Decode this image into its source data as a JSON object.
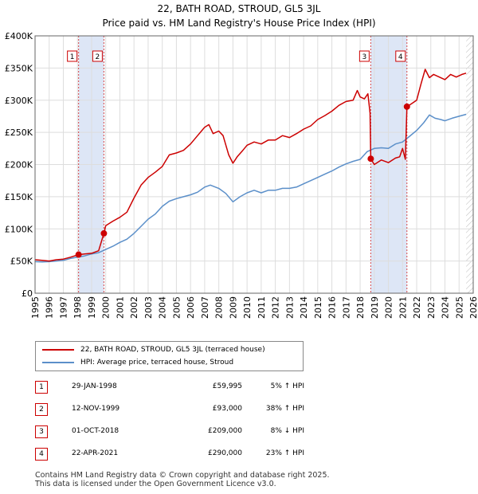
{
  "title": "22, BATH ROAD, STROUD, GL5 3JL",
  "subtitle": "Price paid vs. HM Land Registry's House Price Index (HPI)",
  "chart_data": {
    "type": "line",
    "xlim": [
      1995,
      2026
    ],
    "ylim": [
      0,
      400000
    ],
    "x_ticks": [
      1995,
      1996,
      1997,
      1998,
      1999,
      2000,
      2001,
      2002,
      2003,
      2004,
      2005,
      2006,
      2007,
      2008,
      2009,
      2010,
      2011,
      2012,
      2013,
      2014,
      2015,
      2016,
      2017,
      2018,
      2019,
      2020,
      2021,
      2022,
      2023,
      2024,
      2025,
      2026
    ],
    "y_ticks": [
      {
        "value": 0,
        "label": "£0"
      },
      {
        "value": 50000,
        "label": "£50K"
      },
      {
        "value": 100000,
        "label": "£100K"
      },
      {
        "value": 150000,
        "label": "£150K"
      },
      {
        "value": 200000,
        "label": "£200K"
      },
      {
        "value": 250000,
        "label": "£250K"
      },
      {
        "value": 300000,
        "label": "£300K"
      },
      {
        "value": 350000,
        "label": "£350K"
      },
      {
        "value": 400000,
        "label": "£400K"
      }
    ],
    "grid": true,
    "colors": {
      "property": "#cc0000",
      "hpi": "#5b8fc9",
      "shade": "#dde6f6",
      "marker": "#cc0000"
    },
    "shaded_ranges": [
      [
        1998.08,
        1999.87
      ],
      [
        2018.75,
        2021.31
      ]
    ],
    "future_hatch_from": 2025.5,
    "series": [
      {
        "name": "22, BATH ROAD, STROUD, GL5 3JL (terraced house)",
        "points": [
          [
            1995.0,
            52000
          ],
          [
            1995.5,
            51000
          ],
          [
            1996.0,
            50000
          ],
          [
            1996.5,
            52000
          ],
          [
            1997.0,
            53000
          ],
          [
            1997.5,
            56000
          ],
          [
            1998.08,
            59995
          ],
          [
            1998.5,
            61000
          ],
          [
            1999.0,
            62000
          ],
          [
            1999.5,
            66000
          ],
          [
            1999.87,
            93000
          ],
          [
            2000.0,
            105000
          ],
          [
            2000.5,
            112000
          ],
          [
            2001.0,
            118000
          ],
          [
            2001.5,
            126000
          ],
          [
            2002.0,
            148000
          ],
          [
            2002.5,
            168000
          ],
          [
            2003.0,
            180000
          ],
          [
            2003.5,
            188000
          ],
          [
            2004.0,
            197000
          ],
          [
            2004.5,
            215000
          ],
          [
            2005.0,
            218000
          ],
          [
            2005.5,
            222000
          ],
          [
            2006.0,
            232000
          ],
          [
            2006.5,
            245000
          ],
          [
            2007.0,
            258000
          ],
          [
            2007.3,
            262000
          ],
          [
            2007.6,
            248000
          ],
          [
            2008.0,
            252000
          ],
          [
            2008.3,
            245000
          ],
          [
            2008.7,
            215000
          ],
          [
            2009.0,
            202000
          ],
          [
            2009.3,
            212000
          ],
          [
            2009.7,
            222000
          ],
          [
            2010.0,
            230000
          ],
          [
            2010.5,
            235000
          ],
          [
            2011.0,
            232000
          ],
          [
            2011.5,
            238000
          ],
          [
            2012.0,
            238000
          ],
          [
            2012.5,
            245000
          ],
          [
            2013.0,
            242000
          ],
          [
            2013.5,
            248000
          ],
          [
            2014.0,
            255000
          ],
          [
            2014.5,
            260000
          ],
          [
            2015.0,
            270000
          ],
          [
            2015.5,
            276000
          ],
          [
            2016.0,
            283000
          ],
          [
            2016.5,
            292000
          ],
          [
            2017.0,
            298000
          ],
          [
            2017.5,
            300000
          ],
          [
            2017.8,
            315000
          ],
          [
            2018.0,
            305000
          ],
          [
            2018.3,
            302000
          ],
          [
            2018.55,
            310000
          ],
          [
            2018.7,
            280000
          ],
          [
            2018.75,
            209000
          ],
          [
            2019.0,
            200000
          ],
          [
            2019.5,
            207000
          ],
          [
            2020.0,
            203000
          ],
          [
            2020.5,
            210000
          ],
          [
            2020.8,
            212000
          ],
          [
            2021.0,
            225000
          ],
          [
            2021.2,
            208000
          ],
          [
            2021.31,
            290000
          ],
          [
            2021.6,
            294000
          ],
          [
            2022.0,
            300000
          ],
          [
            2022.3,
            325000
          ],
          [
            2022.6,
            348000
          ],
          [
            2022.9,
            335000
          ],
          [
            2023.2,
            340000
          ],
          [
            2023.6,
            336000
          ],
          [
            2024.0,
            332000
          ],
          [
            2024.4,
            340000
          ],
          [
            2024.8,
            336000
          ],
          [
            2025.2,
            340000
          ],
          [
            2025.5,
            342000
          ]
        ]
      },
      {
        "name": "HPI: Average price, terraced house, Stroud",
        "points": [
          [
            1995.0,
            49000
          ],
          [
            1995.5,
            48500
          ],
          [
            1996.0,
            49000
          ],
          [
            1996.5,
            50000
          ],
          [
            1997.0,
            51000
          ],
          [
            1997.5,
            54000
          ],
          [
            1998.0,
            56000
          ],
          [
            1998.5,
            58000
          ],
          [
            1999.0,
            61000
          ],
          [
            1999.5,
            63000
          ],
          [
            2000.0,
            68000
          ],
          [
            2000.5,
            73000
          ],
          [
            2001.0,
            79000
          ],
          [
            2001.5,
            84000
          ],
          [
            2002.0,
            93000
          ],
          [
            2002.5,
            104000
          ],
          [
            2003.0,
            115000
          ],
          [
            2003.5,
            123000
          ],
          [
            2004.0,
            135000
          ],
          [
            2004.5,
            143000
          ],
          [
            2005.0,
            147000
          ],
          [
            2005.5,
            150000
          ],
          [
            2006.0,
            153000
          ],
          [
            2006.5,
            157000
          ],
          [
            2007.0,
            165000
          ],
          [
            2007.4,
            168000
          ],
          [
            2008.0,
            163000
          ],
          [
            2008.5,
            155000
          ],
          [
            2009.0,
            142000
          ],
          [
            2009.5,
            150000
          ],
          [
            2010.0,
            156000
          ],
          [
            2010.5,
            160000
          ],
          [
            2011.0,
            156000
          ],
          [
            2011.5,
            160000
          ],
          [
            2012.0,
            160000
          ],
          [
            2012.5,
            163000
          ],
          [
            2013.0,
            163000
          ],
          [
            2013.5,
            165000
          ],
          [
            2014.0,
            170000
          ],
          [
            2014.5,
            175000
          ],
          [
            2015.0,
            180000
          ],
          [
            2015.5,
            185000
          ],
          [
            2016.0,
            190000
          ],
          [
            2016.5,
            196000
          ],
          [
            2017.0,
            201000
          ],
          [
            2017.5,
            205000
          ],
          [
            2018.0,
            208000
          ],
          [
            2018.5,
            220000
          ],
          [
            2019.0,
            225000
          ],
          [
            2019.5,
            226000
          ],
          [
            2020.0,
            225000
          ],
          [
            2020.5,
            232000
          ],
          [
            2021.0,
            235000
          ],
          [
            2021.5,
            244000
          ],
          [
            2022.0,
            253000
          ],
          [
            2022.5,
            265000
          ],
          [
            2022.9,
            277000
          ],
          [
            2023.3,
            272000
          ],
          [
            2023.7,
            270000
          ],
          [
            2024.0,
            268000
          ],
          [
            2024.5,
            272000
          ],
          [
            2025.0,
            275000
          ],
          [
            2025.5,
            278000
          ]
        ]
      }
    ],
    "markers": [
      {
        "label": "1",
        "x": 1998.08,
        "y": 59995
      },
      {
        "label": "2",
        "x": 1999.87,
        "y": 93000
      },
      {
        "label": "3",
        "x": 2018.75,
        "y": 209000
      },
      {
        "label": "4",
        "x": 2021.31,
        "y": 290000
      }
    ]
  },
  "legend": {
    "property_label": "22, BATH ROAD, STROUD, GL5 3JL (terraced house)",
    "hpi_label": "HPI: Average price, terraced house, Stroud"
  },
  "sales": [
    {
      "num": "1",
      "date": "29-JAN-1998",
      "price": "£59,995",
      "hpi": "5% ↑ HPI"
    },
    {
      "num": "2",
      "date": "12-NOV-1999",
      "price": "£93,000",
      "hpi": "38% ↑ HPI"
    },
    {
      "num": "3",
      "date": "01-OCT-2018",
      "price": "£209,000",
      "hpi": "8% ↓ HPI"
    },
    {
      "num": "4",
      "date": "22-APR-2021",
      "price": "£290,000",
      "hpi": "23% ↑ HPI"
    }
  ],
  "footer": {
    "line1": "Contains HM Land Registry data © Crown copyright and database right 2025.",
    "line2": "This data is licensed under the Open Government Licence v3.0."
  }
}
